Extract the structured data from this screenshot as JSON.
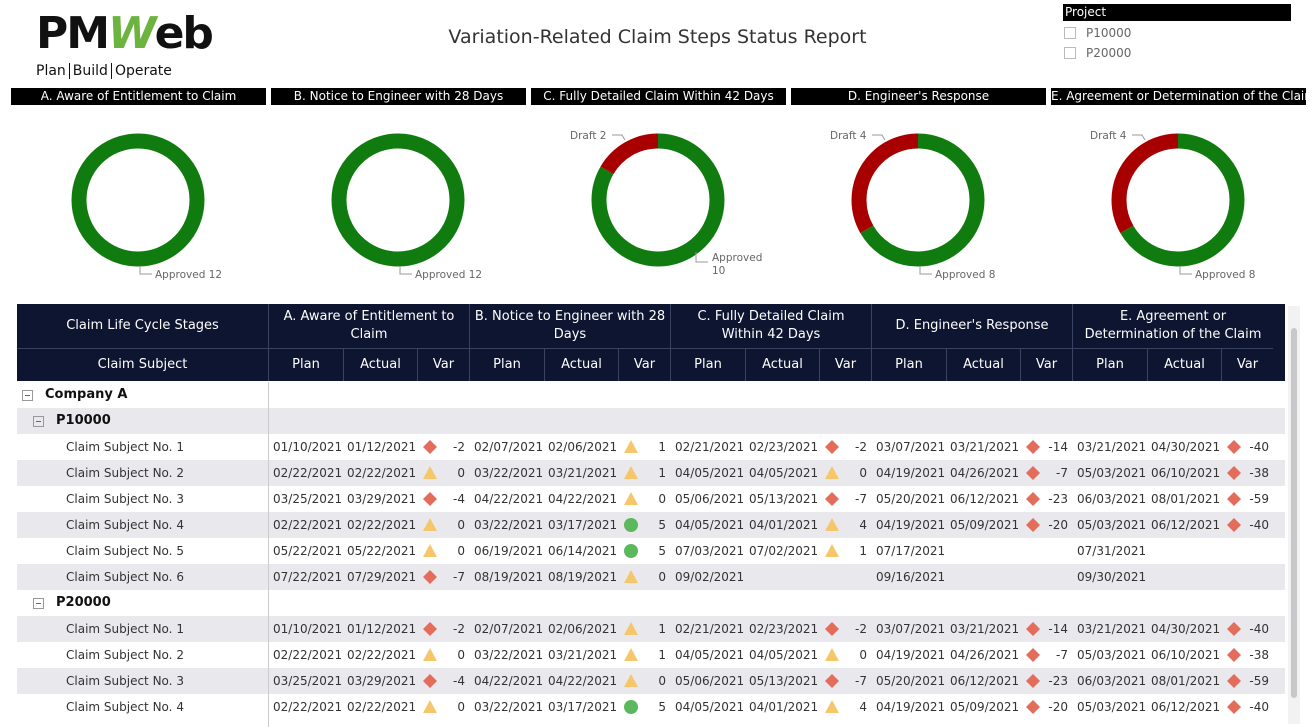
{
  "logo": {
    "letters": [
      "PM",
      "W",
      "eb"
    ],
    "tagline": [
      "Plan",
      "Build",
      "Operate"
    ]
  },
  "title": "Variation-Related Claim Steps Status Report",
  "slicer": {
    "label": "Project",
    "options": [
      "P10000",
      "P20000"
    ]
  },
  "stages": [
    "A. Aware of Entitlement to Claim",
    "B. Notice to Engineer with 28 Days",
    "C. Fully Detailed Claim Within 42 Days",
    "D. Engineer's Response",
    "E. Agreement or Determination of the Claim"
  ],
  "donuts": [
    {
      "segments": [
        {
          "name": "Approved",
          "value": 12,
          "color": "#107c10"
        }
      ]
    },
    {
      "segments": [
        {
          "name": "Approved",
          "value": 12,
          "color": "#107c10"
        }
      ]
    },
    {
      "segments": [
        {
          "name": "Approved",
          "value": 10,
          "color": "#107c10"
        },
        {
          "name": "Draft",
          "value": 2,
          "color": "#a80000"
        }
      ]
    },
    {
      "segments": [
        {
          "name": "Approved",
          "value": 8,
          "color": "#107c10"
        },
        {
          "name": "Draft",
          "value": 4,
          "color": "#a80000"
        }
      ]
    },
    {
      "segments": [
        {
          "name": "Approved",
          "value": 8,
          "color": "#107c10"
        },
        {
          "name": "Draft",
          "value": 4,
          "color": "#a80000"
        }
      ]
    }
  ],
  "table": {
    "corner": "Claim Life Cycle Stages",
    "subject_header": "Claim Subject",
    "column_labels": [
      "Plan",
      "Actual",
      "Var"
    ],
    "groups": [
      {
        "name": "Company A",
        "projects": [
          {
            "name": "P10000",
            "rows": [
              {
                "subject": "Claim Subject No. 1",
                "stages": [
                  [
                    "01/10/2021",
                    "01/12/2021",
                    "diamond",
                    -2
                  ],
                  [
                    "02/07/2021",
                    "02/06/2021",
                    "triangle",
                    1
                  ],
                  [
                    "02/21/2021",
                    "02/23/2021",
                    "diamond",
                    -2
                  ],
                  [
                    "03/07/2021",
                    "03/21/2021",
                    "diamond",
                    -14
                  ],
                  [
                    "03/21/2021",
                    "04/30/2021",
                    "diamond",
                    -40
                  ]
                ]
              },
              {
                "subject": "Claim Subject No. 2",
                "stages": [
                  [
                    "02/22/2021",
                    "02/22/2021",
                    "triangle",
                    0
                  ],
                  [
                    "03/22/2021",
                    "03/21/2021",
                    "triangle",
                    1
                  ],
                  [
                    "04/05/2021",
                    "04/05/2021",
                    "triangle",
                    0
                  ],
                  [
                    "04/19/2021",
                    "04/26/2021",
                    "diamond",
                    -7
                  ],
                  [
                    "05/03/2021",
                    "06/10/2021",
                    "diamond",
                    -38
                  ]
                ]
              },
              {
                "subject": "Claim Subject No. 3",
                "stages": [
                  [
                    "03/25/2021",
                    "03/29/2021",
                    "diamond",
                    -4
                  ],
                  [
                    "04/22/2021",
                    "04/22/2021",
                    "triangle",
                    0
                  ],
                  [
                    "05/06/2021",
                    "05/13/2021",
                    "diamond",
                    -7
                  ],
                  [
                    "05/20/2021",
                    "06/12/2021",
                    "diamond",
                    -23
                  ],
                  [
                    "06/03/2021",
                    "08/01/2021",
                    "diamond",
                    -59
                  ]
                ]
              },
              {
                "subject": "Claim Subject No. 4",
                "stages": [
                  [
                    "02/22/2021",
                    "02/22/2021",
                    "triangle",
                    0
                  ],
                  [
                    "03/22/2021",
                    "03/17/2021",
                    "circle",
                    5
                  ],
                  [
                    "04/05/2021",
                    "04/01/2021",
                    "triangle",
                    4
                  ],
                  [
                    "04/19/2021",
                    "05/09/2021",
                    "diamond",
                    -20
                  ],
                  [
                    "05/03/2021",
                    "06/12/2021",
                    "diamond",
                    -40
                  ]
                ]
              },
              {
                "subject": "Claim Subject No. 5",
                "stages": [
                  [
                    "05/22/2021",
                    "05/22/2021",
                    "triangle",
                    0
                  ],
                  [
                    "06/19/2021",
                    "06/14/2021",
                    "circle",
                    5
                  ],
                  [
                    "07/03/2021",
                    "07/02/2021",
                    "triangle",
                    1
                  ],
                  [
                    "07/17/2021",
                    null,
                    null,
                    null
                  ],
                  [
                    "07/31/2021",
                    null,
                    null,
                    null
                  ]
                ]
              },
              {
                "subject": "Claim Subject No. 6",
                "stages": [
                  [
                    "07/22/2021",
                    "07/29/2021",
                    "diamond",
                    -7
                  ],
                  [
                    "08/19/2021",
                    "08/19/2021",
                    "triangle",
                    0
                  ],
                  [
                    "09/02/2021",
                    null,
                    null,
                    null
                  ],
                  [
                    "09/16/2021",
                    null,
                    null,
                    null
                  ],
                  [
                    "09/30/2021",
                    null,
                    null,
                    null
                  ]
                ]
              }
            ]
          },
          {
            "name": "P20000",
            "rows": [
              {
                "subject": "Claim Subject No. 1",
                "stages": [
                  [
                    "01/10/2021",
                    "01/12/2021",
                    "diamond",
                    -2
                  ],
                  [
                    "02/07/2021",
                    "02/06/2021",
                    "triangle",
                    1
                  ],
                  [
                    "02/21/2021",
                    "02/23/2021",
                    "diamond",
                    -2
                  ],
                  [
                    "03/07/2021",
                    "03/21/2021",
                    "diamond",
                    -14
                  ],
                  [
                    "03/21/2021",
                    "04/30/2021",
                    "diamond",
                    -40
                  ]
                ]
              },
              {
                "subject": "Claim Subject No. 2",
                "stages": [
                  [
                    "02/22/2021",
                    "02/22/2021",
                    "triangle",
                    0
                  ],
                  [
                    "03/22/2021",
                    "03/21/2021",
                    "triangle",
                    1
                  ],
                  [
                    "04/05/2021",
                    "04/05/2021",
                    "triangle",
                    0
                  ],
                  [
                    "04/19/2021",
                    "04/26/2021",
                    "diamond",
                    -7
                  ],
                  [
                    "05/03/2021",
                    "06/10/2021",
                    "diamond",
                    -38
                  ]
                ]
              },
              {
                "subject": "Claim Subject No. 3",
                "stages": [
                  [
                    "03/25/2021",
                    "03/29/2021",
                    "diamond",
                    -4
                  ],
                  [
                    "04/22/2021",
                    "04/22/2021",
                    "triangle",
                    0
                  ],
                  [
                    "05/06/2021",
                    "05/13/2021",
                    "diamond",
                    -7
                  ],
                  [
                    "05/20/2021",
                    "06/12/2021",
                    "diamond",
                    -23
                  ],
                  [
                    "06/03/2021",
                    "08/01/2021",
                    "diamond",
                    -59
                  ]
                ]
              },
              {
                "subject": "Claim Subject No. 4",
                "stages": [
                  [
                    "02/22/2021",
                    "02/22/2021",
                    "triangle",
                    0
                  ],
                  [
                    "03/22/2021",
                    "03/17/2021",
                    "circle",
                    5
                  ],
                  [
                    "04/05/2021",
                    "04/01/2021",
                    "triangle",
                    4
                  ],
                  [
                    "04/19/2021",
                    "05/09/2021",
                    "diamond",
                    -20
                  ],
                  [
                    "05/03/2021",
                    "06/12/2021",
                    "diamond",
                    -40
                  ]
                ]
              }
            ]
          }
        ]
      }
    ]
  }
}
